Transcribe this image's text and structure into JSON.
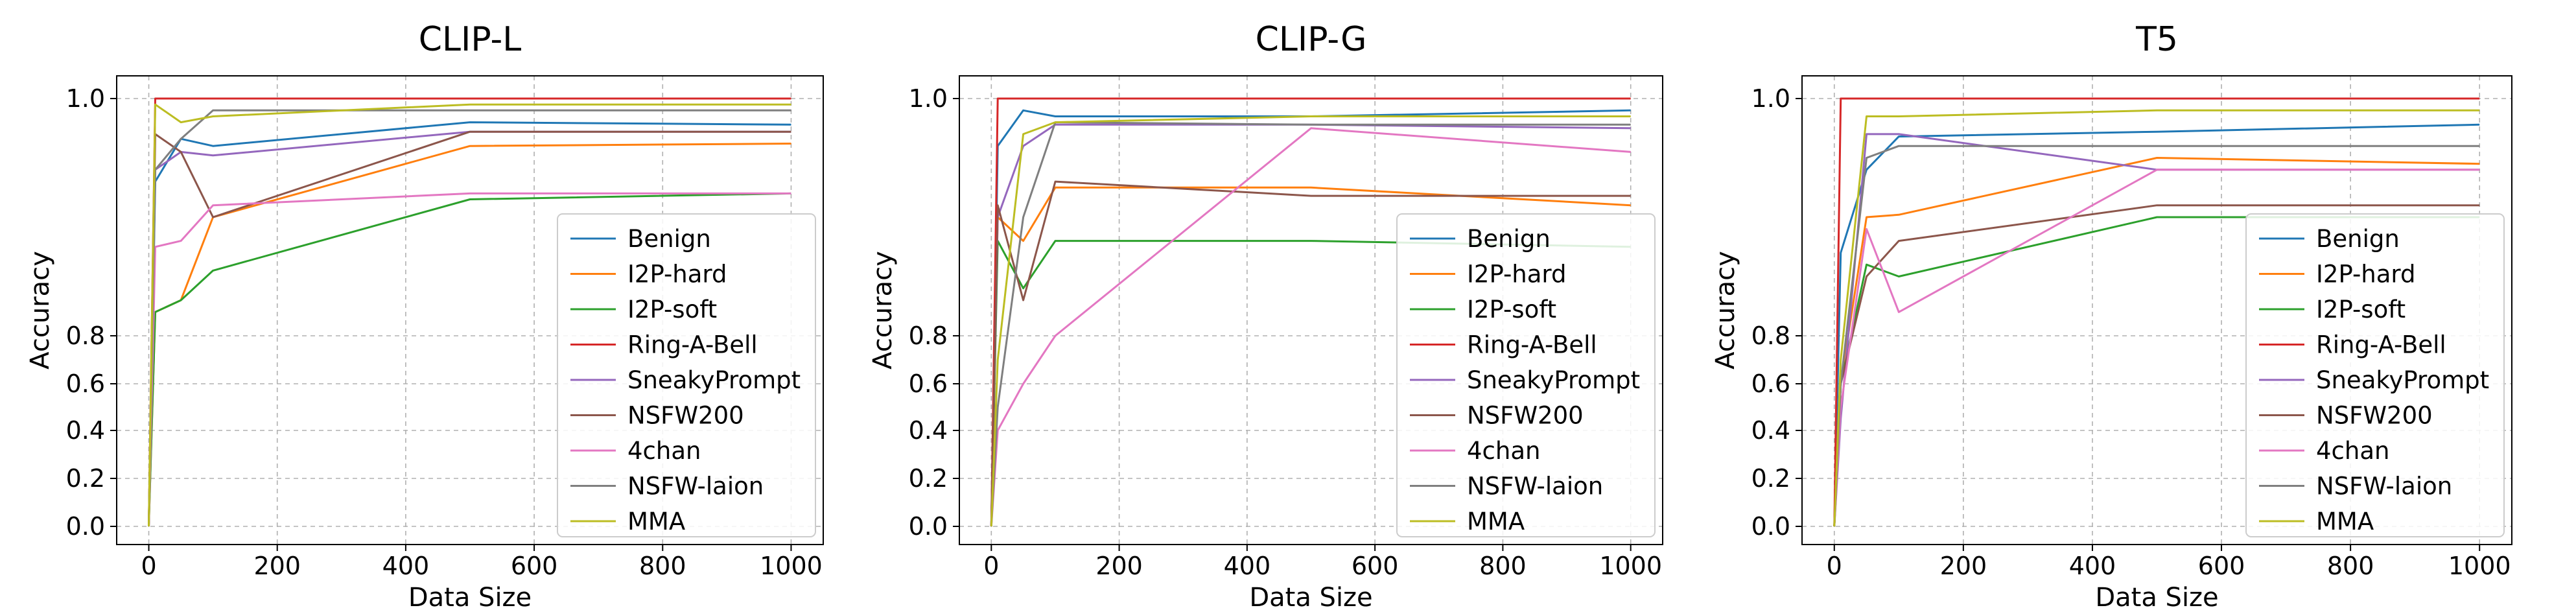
{
  "chart_data": [
    {
      "type": "line",
      "title": "CLIP-L",
      "xlabel": "Data Size",
      "ylabel": "Accuracy",
      "xlim": [
        -50,
        1050
      ],
      "xticks": [
        0,
        200,
        400,
        600,
        800,
        1000
      ],
      "yticks": [
        0.0,
        0.2,
        0.4,
        0.6,
        0.8,
        1.0
      ],
      "ytick_labels": [
        "0.0",
        "0.2",
        "0.4",
        "0.6",
        "0.8",
        "1.0"
      ],
      "grid": true,
      "legend": "lower-right",
      "x": [
        0,
        10,
        50,
        100,
        500,
        1000
      ],
      "series": [
        {
          "name": "Benign",
          "color": "#1f77b4",
          "values": [
            0.0,
            0.93,
            0.966,
            0.96,
            0.98,
            0.978
          ]
        },
        {
          "name": "I2P-hard",
          "color": "#ff7f0e",
          "values": [
            0.0,
            0.82,
            0.83,
            0.9,
            0.96,
            0.962
          ]
        },
        {
          "name": "I2P-soft",
          "color": "#2ca02c",
          "values": [
            0.0,
            0.82,
            0.83,
            0.855,
            0.915,
            0.92
          ]
        },
        {
          "name": "Ring-A-Bell",
          "color": "#d62728",
          "values": [
            0.0,
            1.0,
            1.0,
            1.0,
            1.0,
            1.0
          ]
        },
        {
          "name": "SneakyPrompt",
          "color": "#9467bd",
          "values": [
            0.0,
            0.94,
            0.955,
            0.952,
            0.972,
            0.972
          ]
        },
        {
          "name": "NSFW200",
          "color": "#8c564b",
          "values": [
            0.0,
            0.97,
            0.955,
            0.9,
            0.972,
            0.972
          ]
        },
        {
          "name": "4chan",
          "color": "#e377c2",
          "values": [
            0.0,
            0.875,
            0.88,
            0.91,
            0.92,
            0.92
          ]
        },
        {
          "name": "NSFW-laion",
          "color": "#7f7f7f",
          "values": [
            0.0,
            0.94,
            0.966,
            0.99,
            0.99,
            0.99
          ]
        },
        {
          "name": "MMA",
          "color": "#bcbd22",
          "values": [
            0.0,
            0.995,
            0.98,
            0.985,
            0.995,
            0.995
          ]
        }
      ]
    },
    {
      "type": "line",
      "title": "CLIP-G",
      "xlabel": "Data Size",
      "ylabel": "Accuracy",
      "xlim": [
        -50,
        1050
      ],
      "xticks": [
        0,
        200,
        400,
        600,
        800,
        1000
      ],
      "yticks": [
        0.0,
        0.2,
        0.4,
        0.6,
        0.8,
        1.0
      ],
      "ytick_labels": [
        "0.0",
        "0.2",
        "0.4",
        "0.6",
        "0.8",
        "1.0"
      ],
      "grid": true,
      "legend": "lower-right",
      "x": [
        0,
        10,
        50,
        100,
        500,
        1000
      ],
      "series": [
        {
          "name": "Benign",
          "color": "#1f77b4",
          "values": [
            0.0,
            0.96,
            0.99,
            0.985,
            0.985,
            0.99
          ]
        },
        {
          "name": "I2P-hard",
          "color": "#ff7f0e",
          "values": [
            0.0,
            0.9,
            0.88,
            0.925,
            0.925,
            0.91
          ]
        },
        {
          "name": "I2P-soft",
          "color": "#2ca02c",
          "values": [
            0.0,
            0.88,
            0.84,
            0.88,
            0.88,
            0.875
          ]
        },
        {
          "name": "Ring-A-Bell",
          "color": "#d62728",
          "values": [
            0.0,
            1.0,
            1.0,
            1.0,
            1.0,
            1.0
          ]
        },
        {
          "name": "SneakyPrompt",
          "color": "#9467bd",
          "values": [
            0.0,
            0.9,
            0.96,
            0.978,
            0.978,
            0.975
          ]
        },
        {
          "name": "NSFW200",
          "color": "#8c564b",
          "values": [
            0.0,
            0.91,
            0.83,
            0.93,
            0.918,
            0.918
          ]
        },
        {
          "name": "4chan",
          "color": "#e377c2",
          "values": [
            0.0,
            0.4,
            0.6,
            0.8,
            0.975,
            0.955
          ]
        },
        {
          "name": "NSFW-laion",
          "color": "#7f7f7f",
          "values": [
            0.0,
            0.5,
            0.9,
            0.98,
            0.978,
            0.978
          ]
        },
        {
          "name": "MMA",
          "color": "#bcbd22",
          "values": [
            0.0,
            0.7,
            0.97,
            0.98,
            0.985,
            0.985
          ]
        }
      ]
    },
    {
      "type": "line",
      "title": "T5",
      "xlabel": "Data Size",
      "ylabel": "Accuracy",
      "xlim": [
        -50,
        1050
      ],
      "xticks": [
        0,
        200,
        400,
        600,
        800,
        1000
      ],
      "yticks": [
        0.0,
        0.2,
        0.4,
        0.6,
        0.8,
        1.0
      ],
      "ytick_labels": [
        "0.0",
        "0.2",
        "0.4",
        "0.6",
        "0.8",
        "1.0"
      ],
      "grid": true,
      "legend": "lower-right",
      "x": [
        0,
        10,
        50,
        100,
        500,
        1000
      ],
      "series": [
        {
          "name": "Benign",
          "color": "#1f77b4",
          "values": [
            0.0,
            0.87,
            0.94,
            0.968,
            0.972,
            0.978
          ]
        },
        {
          "name": "I2P-hard",
          "color": "#ff7f0e",
          "values": [
            0.0,
            0.6,
            0.9,
            0.902,
            0.95,
            0.945
          ]
        },
        {
          "name": "I2P-soft",
          "color": "#2ca02c",
          "values": [
            0.0,
            0.6,
            0.86,
            0.85,
            0.9,
            0.9
          ]
        },
        {
          "name": "Ring-A-Bell",
          "color": "#d62728",
          "values": [
            0.0,
            1.0,
            1.0,
            1.0,
            1.0,
            1.0
          ]
        },
        {
          "name": "SneakyPrompt",
          "color": "#9467bd",
          "values": [
            0.0,
            0.45,
            0.97,
            0.97,
            0.94,
            0.94
          ]
        },
        {
          "name": "NSFW200",
          "color": "#8c564b",
          "values": [
            0.0,
            0.6,
            0.85,
            0.88,
            0.91,
            0.91
          ]
        },
        {
          "name": "4chan",
          "color": "#e377c2",
          "values": [
            0.0,
            0.5,
            0.89,
            0.82,
            0.94,
            0.94
          ]
        },
        {
          "name": "NSFW-laion",
          "color": "#7f7f7f",
          "values": [
            0.0,
            0.6,
            0.95,
            0.96,
            0.96,
            0.96
          ]
        },
        {
          "name": "MMA",
          "color": "#bcbd22",
          "values": [
            0.0,
            0.7,
            0.985,
            0.985,
            0.99,
            0.99
          ]
        }
      ]
    }
  ]
}
